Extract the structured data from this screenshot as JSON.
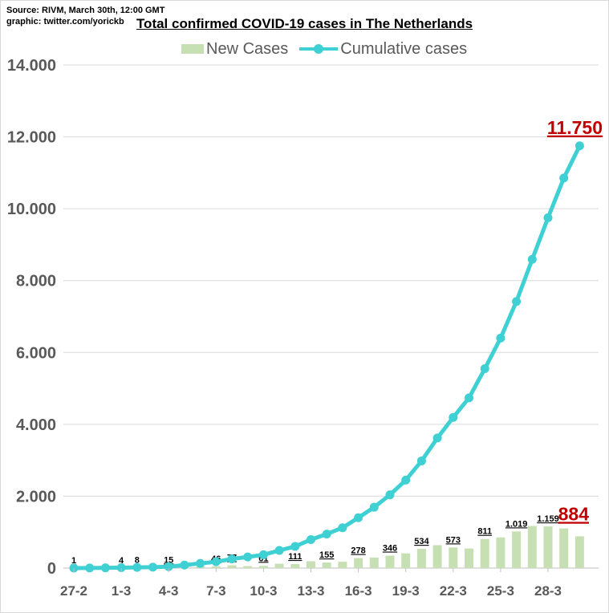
{
  "source": {
    "line1": "Source: RIVM, March 30th, 12:00 GMT",
    "line2": "graphic: twitter.com/yorickb"
  },
  "chart_data": {
    "type": "bar+line",
    "title": "Total confirmed COVID-19 cases in The Netherlands",
    "xlabel": "",
    "ylabel": "",
    "ylim": [
      0,
      14000
    ],
    "yticks": [
      0,
      2000,
      4000,
      6000,
      8000,
      10000,
      12000,
      14000
    ],
    "ytick_labels": [
      "0",
      "2.000",
      "4.000",
      "6.000",
      "8.000",
      "10.000",
      "12.000",
      "14.000"
    ],
    "grid": "horizontal",
    "legend_position": "top",
    "x": [
      "27-2",
      "28-2",
      "29-2",
      "1-3",
      "2-3",
      "3-3",
      "4-3",
      "5-3",
      "6-3",
      "7-3",
      "8-3",
      "9-3",
      "10-3",
      "11-3",
      "12-3",
      "13-3",
      "14-3",
      "15-3",
      "16-3",
      "17-3",
      "18-3",
      "19-3",
      "20-3",
      "21-3",
      "22-3",
      "23-3",
      "24-3",
      "25-3",
      "26-3",
      "27-3",
      "28-3",
      "29-3",
      "30-3"
    ],
    "xtick_labels": [
      "27-2",
      "1-3",
      "4-3",
      "7-3",
      "10-3",
      "13-3",
      "16-3",
      "19-3",
      "22-3",
      "25-3",
      "28-3"
    ],
    "series": [
      {
        "name": "New Cases",
        "type": "bar",
        "color": "#c6e0b4",
        "values": [
          1,
          1,
          5,
          4,
          8,
          6,
          15,
          44,
          46,
          46,
          77,
          56,
          61,
          121,
          111,
          190,
          155,
          176,
          278,
          292,
          346,
          409,
          534,
          637,
          573,
          545,
          811,
          852,
          1019,
          1172,
          1159,
          1104,
          884
        ],
        "labels": {
          "0": "1",
          "3": "4",
          "4": "8",
          "6": "15",
          "9": "46",
          "10": "77",
          "12": "61",
          "14": "111",
          "16": "155",
          "18": "278",
          "20": "346",
          "22": "534",
          "24": "573",
          "26": "811",
          "28": "1.019",
          "30": "1.159"
        }
      },
      {
        "name": "Cumulative cases",
        "type": "line",
        "color": "#3fd0d4",
        "values": [
          1,
          2,
          7,
          11,
          19,
          25,
          40,
          84,
          130,
          176,
          253,
          309,
          370,
          491,
          602,
          792,
          947,
          1123,
          1401,
          1693,
          2039,
          2448,
          2982,
          3619,
          4192,
          4737,
          5548,
          6400,
          7419,
          8591,
          9750,
          10854,
          11750
        ]
      }
    ],
    "callouts": {
      "last_cumulative": "11.750",
      "last_new": "884"
    }
  }
}
